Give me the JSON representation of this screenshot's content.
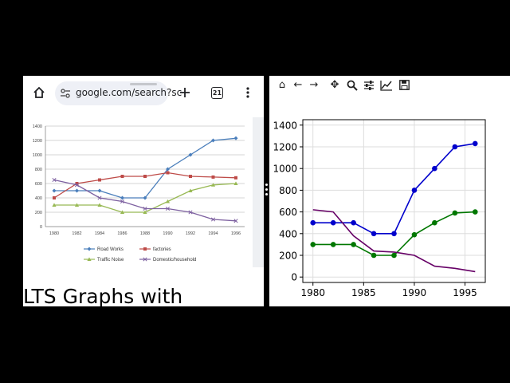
{
  "left_panel": {
    "browser": {
      "url": "google.com/search?sc",
      "tab_count": "21",
      "icons": [
        "home-icon",
        "site-settings-icon",
        "new-tab-icon",
        "tab-switcher-icon",
        "more-vert-icon"
      ]
    },
    "chart_data": {
      "type": "line",
      "x": [
        "1980",
        "1982",
        "1984",
        "1986",
        "1988",
        "1990",
        "1992",
        "1994",
        "1996"
      ],
      "yticks": [
        "0",
        "200",
        "400",
        "600",
        "800",
        "1000",
        "1200",
        "1400"
      ],
      "ylim": [
        0,
        1400
      ],
      "grid": true,
      "legend_placement": "bottom",
      "series": [
        {
          "name": "Road Works",
          "values": [
            500,
            500,
            500,
            400,
            400,
            800,
            1000,
            1200,
            1230
          ],
          "color": "#4a7ebb",
          "marker": "diamond"
        },
        {
          "name": "factories",
          "values": [
            400,
            600,
            650,
            700,
            700,
            750,
            700,
            690,
            680
          ],
          "color": "#be4b48",
          "marker": "square"
        },
        {
          "name": "Traffic Noise",
          "values": [
            300,
            300,
            300,
            200,
            200,
            350,
            500,
            580,
            600
          ],
          "color": "#98b954",
          "marker": "triangle"
        },
        {
          "name": "Domestic/household",
          "values": [
            650,
            580,
            400,
            350,
            250,
            250,
            200,
            100,
            80
          ],
          "color": "#7d60a0",
          "marker": "x"
        }
      ]
    },
    "caption": "LTS Graphs with"
  },
  "right_panel": {
    "toolbar_icons": [
      "home-icon",
      "back-arrow-icon",
      "forward-arrow-icon",
      "pan-icon",
      "zoom-icon",
      "configure-subplots-icon",
      "edit-axis-icon",
      "save-icon"
    ],
    "chart_data": {
      "type": "line",
      "xticks": [
        "1980",
        "1985",
        "1990",
        "1995"
      ],
      "yticks": [
        "0",
        "200",
        "400",
        "600",
        "800",
        "1000",
        "1200",
        "1400"
      ],
      "xlim": [
        1979,
        1997
      ],
      "ylim": [
        -50,
        1450
      ],
      "grid": true,
      "series": [
        {
          "x": [
            1980,
            1982,
            1984,
            1986,
            1988,
            1990,
            1992,
            1994,
            1996
          ],
          "values": [
            500,
            500,
            500,
            400,
            400,
            800,
            1000,
            1200,
            1230
          ],
          "color": "#0000cc",
          "markers": true
        },
        {
          "x": [
            1980,
            1982,
            1984,
            1986,
            1988,
            1990,
            1992,
            1994,
            1996
          ],
          "values": [
            300,
            300,
            300,
            200,
            200,
            390,
            500,
            590,
            600
          ],
          "color": "#007700",
          "markers": true
        },
        {
          "x": [
            1980,
            1982,
            1984,
            1986,
            1988,
            1990,
            1992,
            1994,
            1996
          ],
          "values": [
            620,
            600,
            380,
            240,
            230,
            200,
            100,
            80,
            50
          ],
          "color": "#660066",
          "markers": false
        }
      ]
    }
  }
}
